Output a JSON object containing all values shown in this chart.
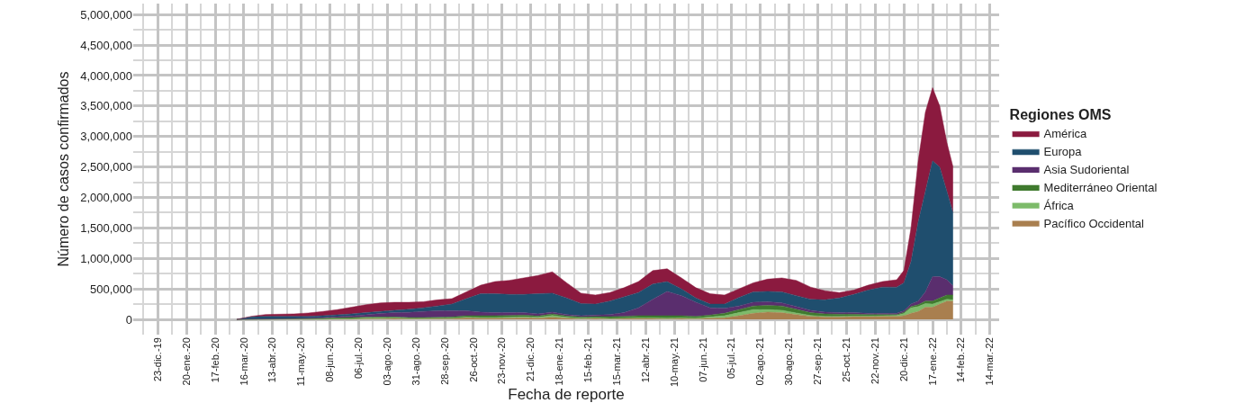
{
  "chart_data": {
    "type": "area",
    "stacked": true,
    "xlabel": "Fecha de reporte",
    "ylabel": "Número de casos confirmados",
    "legend_title": "Regiones OMS",
    "legend": "right",
    "grid": true,
    "x": [
      "2020-03-09",
      "2020-03-23",
      "2020-04-06",
      "2020-04-20",
      "2020-05-04",
      "2020-05-18",
      "2020-06-01",
      "2020-06-15",
      "2020-06-29",
      "2020-07-13",
      "2020-07-27",
      "2020-08-10",
      "2020-08-24",
      "2020-09-07",
      "2020-09-21",
      "2020-10-05",
      "2020-10-19",
      "2020-11-02",
      "2020-11-16",
      "2020-11-30",
      "2020-12-14",
      "2020-12-28",
      "2021-01-11",
      "2021-01-25",
      "2021-02-08",
      "2021-02-22",
      "2021-03-08",
      "2021-03-22",
      "2021-04-05",
      "2021-04-19",
      "2021-05-03",
      "2021-05-17",
      "2021-05-31",
      "2021-06-14",
      "2021-06-28",
      "2021-07-12",
      "2021-07-26",
      "2021-08-09",
      "2021-08-23",
      "2021-09-06",
      "2021-09-20",
      "2021-10-04",
      "2021-10-18",
      "2021-11-01",
      "2021-11-15",
      "2021-11-29",
      "2021-12-13",
      "2021-12-20",
      "2021-12-27",
      "2022-01-03",
      "2022-01-10",
      "2022-01-17",
      "2022-01-24",
      "2022-01-31",
      "2022-02-06"
    ],
    "series": [
      {
        "name": "Pacífico Occidental",
        "color": "#a97f4f",
        "values": [
          0,
          1000,
          1000,
          2000,
          3000,
          2000,
          2000,
          3000,
          3000,
          7000,
          10000,
          15000,
          10000,
          10000,
          12000,
          12000,
          25000,
          20000,
          20000,
          20000,
          25000,
          20000,
          35000,
          20000,
          10000,
          15000,
          10000,
          15000,
          15000,
          15000,
          10000,
          15000,
          10000,
          20000,
          25000,
          60000,
          100000,
          120000,
          110000,
          80000,
          50000,
          40000,
          40000,
          45000,
          45000,
          50000,
          50000,
          60000,
          100000,
          130000,
          200000,
          200000,
          250000,
          300000,
          300000
        ]
      },
      {
        "name": "África",
        "color": "#7dbb6a",
        "values": [
          0,
          0,
          1000,
          2000,
          2000,
          2000,
          4000,
          7000,
          10000,
          15000,
          15000,
          12000,
          8000,
          8000,
          8000,
          8000,
          10000,
          10000,
          10000,
          15000,
          15000,
          15000,
          30000,
          15000,
          10000,
          10000,
          5000,
          5000,
          10000,
          10000,
          10000,
          10000,
          10000,
          20000,
          35000,
          50000,
          60000,
          40000,
          40000,
          25000,
          15000,
          10000,
          10000,
          10000,
          10000,
          10000,
          15000,
          35000,
          90000,
          80000,
          60000,
          50000,
          40000,
          30000,
          20000
        ]
      },
      {
        "name": "Mediterráneo Oriental",
        "color": "#3f7a2e",
        "values": [
          0,
          2000,
          3000,
          4000,
          6000,
          8000,
          12000,
          15000,
          17000,
          16000,
          15000,
          13000,
          12000,
          12000,
          15000,
          20000,
          25000,
          30000,
          30000,
          30000,
          30000,
          20000,
          25000,
          20000,
          20000,
          20000,
          30000,
          30000,
          35000,
          35000,
          40000,
          35000,
          30000,
          30000,
          40000,
          50000,
          60000,
          70000,
          70000,
          60000,
          45000,
          40000,
          35000,
          30000,
          25000,
          20000,
          15000,
          20000,
          20000,
          30000,
          40000,
          50000,
          60000,
          70000,
          80000
        ]
      },
      {
        "name": "Asia Sudoriental",
        "color": "#5a2e6e",
        "values": [
          0,
          2000,
          3000,
          4000,
          5000,
          8000,
          12000,
          20000,
          25000,
          37000,
          55000,
          70000,
          85000,
          100000,
          105000,
          100000,
          80000,
          60000,
          50000,
          45000,
          40000,
          35000,
          30000,
          25000,
          20000,
          25000,
          35000,
          60000,
          130000,
          270000,
          400000,
          330000,
          230000,
          120000,
          80000,
          60000,
          60000,
          60000,
          50000,
          45000,
          40000,
          30000,
          25000,
          25000,
          20000,
          20000,
          20000,
          25000,
          40000,
          60000,
          150000,
          400000,
          350000,
          250000,
          150000
        ]
      },
      {
        "name": "Europa",
        "color": "#1f4e6e",
        "values": [
          0,
          35000,
          42000,
          38000,
          34000,
          30000,
          30000,
          30000,
          35000,
          35000,
          35000,
          40000,
          50000,
          60000,
          80000,
          110000,
          200000,
          300000,
          310000,
          300000,
          300000,
          330000,
          310000,
          270000,
          200000,
          180000,
          220000,
          260000,
          250000,
          250000,
          160000,
          110000,
          70000,
          60000,
          70000,
          140000,
          170000,
          170000,
          180000,
          180000,
          180000,
          200000,
          240000,
          300000,
          380000,
          430000,
          430000,
          460000,
          700000,
          1300000,
          1650000,
          1900000,
          1800000,
          1450000,
          1200000
        ]
      },
      {
        "name": "América",
        "color": "#8b1a3f",
        "values": [
          0,
          10000,
          30000,
          35000,
          40000,
          55000,
          70000,
          85000,
          110000,
          130000,
          140000,
          130000,
          115000,
          100000,
          100000,
          90000,
          110000,
          140000,
          200000,
          230000,
          270000,
          300000,
          350000,
          250000,
          170000,
          150000,
          140000,
          150000,
          180000,
          220000,
          210000,
          180000,
          170000,
          170000,
          150000,
          140000,
          150000,
          200000,
          230000,
          250000,
          200000,
          150000,
          90000,
          70000,
          80000,
          90000,
          120000,
          200000,
          550000,
          1000000,
          1300000,
          1200000,
          1000000,
          800000,
          750000
        ]
      }
    ],
    "xlim": [
      "2019-11-29",
      "2022-03-23"
    ],
    "xticks": [
      {
        "value": "2019-12-23",
        "label": "23-dic.-19"
      },
      {
        "value": "2020-01-20",
        "label": "20-ene.-20"
      },
      {
        "value": "2020-02-17",
        "label": "17-feb.-20"
      },
      {
        "value": "2020-03-16",
        "label": "16-mar.-20"
      },
      {
        "value": "2020-04-13",
        "label": "13-abr.-20"
      },
      {
        "value": "2020-05-11",
        "label": "11-may.-20"
      },
      {
        "value": "2020-06-08",
        "label": "08-jun.-20"
      },
      {
        "value": "2020-07-06",
        "label": "06-jul.-20"
      },
      {
        "value": "2020-08-03",
        "label": "03-ago.-20"
      },
      {
        "value": "2020-08-31",
        "label": "31-ago.-20"
      },
      {
        "value": "2020-09-28",
        "label": "28-sep.-20"
      },
      {
        "value": "2020-10-26",
        "label": "26-oct.-20"
      },
      {
        "value": "2020-11-23",
        "label": "23-nov.-20"
      },
      {
        "value": "2020-12-21",
        "label": "21-dic.-20"
      },
      {
        "value": "2021-01-18",
        "label": "18-ene.-21"
      },
      {
        "value": "2021-02-15",
        "label": "15-feb.-21"
      },
      {
        "value": "2021-03-15",
        "label": "15-mar.-21"
      },
      {
        "value": "2021-04-12",
        "label": "12-abr.-21"
      },
      {
        "value": "2021-05-10",
        "label": "10-may.-21"
      },
      {
        "value": "2021-06-07",
        "label": "07-jun.-21"
      },
      {
        "value": "2021-07-05",
        "label": "05-jul.-21"
      },
      {
        "value": "2021-08-02",
        "label": "02-ago.-21"
      },
      {
        "value": "2021-08-30",
        "label": "30-ago.-21"
      },
      {
        "value": "2021-09-27",
        "label": "27-sep.-21"
      },
      {
        "value": "2021-10-25",
        "label": "25-oct.-21"
      },
      {
        "value": "2021-11-22",
        "label": "22-nov.-21"
      },
      {
        "value": "2021-12-20",
        "label": "20-dic.-21"
      },
      {
        "value": "2022-01-17",
        "label": "17-ene.-22"
      },
      {
        "value": "2022-02-14",
        "label": "14-feb.-22"
      },
      {
        "value": "2022-03-14",
        "label": "14-mar.-22"
      }
    ],
    "ylim": [
      -250000,
      5180000
    ],
    "yticks": [
      {
        "value": 0,
        "label": "0"
      },
      {
        "value": 500000,
        "label": "500,000"
      },
      {
        "value": 1000000,
        "label": "1,000,000"
      },
      {
        "value": 1500000,
        "label": "1,500,000"
      },
      {
        "value": 2000000,
        "label": "2,000,000"
      },
      {
        "value": 2500000,
        "label": "2,500,000"
      },
      {
        "value": 3000000,
        "label": "3,000,000"
      },
      {
        "value": 3500000,
        "label": "3,500,000"
      },
      {
        "value": 4000000,
        "label": "4,000,000"
      },
      {
        "value": 4500000,
        "label": "4,500,000"
      },
      {
        "value": 5000000,
        "label": "5,000,000"
      }
    ]
  }
}
